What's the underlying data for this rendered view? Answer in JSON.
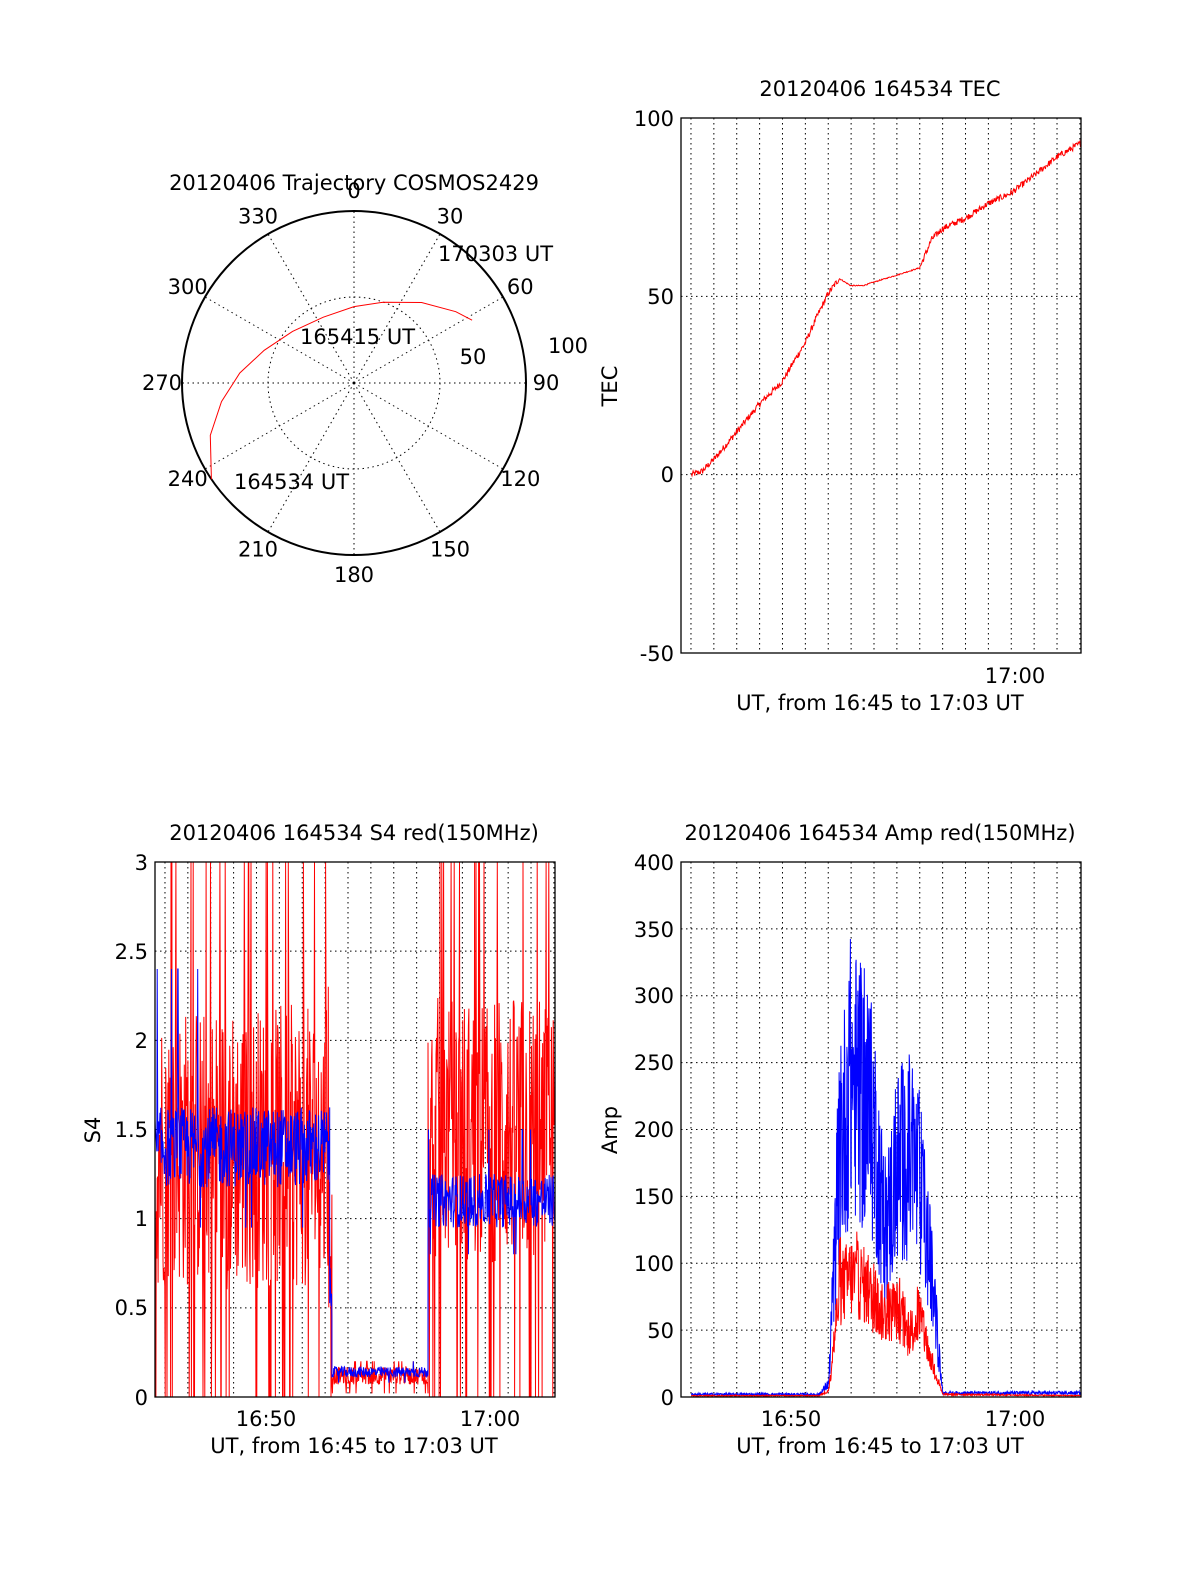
{
  "chart_data": [
    {
      "id": "trajectory",
      "type": "polar",
      "title": "20120406 Trajectory COSMOS2429",
      "azimuth_labels": [
        "0",
        "30",
        "60",
        "90",
        "120",
        "150",
        "180",
        "210",
        "240",
        "270",
        "300",
        "330"
      ],
      "radial_ticks": [
        {
          "label": "100",
          "value": 100
        },
        {
          "label": "50",
          "value": 50
        }
      ],
      "track": {
        "points_az_el": [
          [
            236,
            0
          ],
          [
            250,
            10
          ],
          [
            262,
            20
          ],
          [
            275,
            30
          ],
          [
            290,
            40
          ],
          [
            310,
            48
          ],
          [
            335,
            52
          ],
          [
            0,
            50
          ],
          [
            20,
            45
          ],
          [
            40,
            35
          ],
          [
            55,
            25
          ],
          [
            62,
            20
          ]
        ],
        "color": "#ff0000"
      },
      "annotations": [
        {
          "text": "170303 UT"
        },
        {
          "text": "165415 UT"
        },
        {
          "text": "164534 UT"
        }
      ]
    },
    {
      "id": "tec",
      "type": "line",
      "title": "20120406 164534 TEC",
      "xlabel": "UT, from 16:45 to 17:03 UT",
      "ylabel": "TEC",
      "xlim": [
        16.7594,
        17.0508
      ],
      "ylim": [
        -50,
        100
      ],
      "yticks": [
        {
          "label": "100",
          "value": 100
        },
        {
          "label": "50",
          "value": 50
        },
        {
          "label": "0",
          "value": 0
        },
        {
          "label": "-50",
          "value": -50
        }
      ],
      "xticks": [
        {
          "label": "17:00",
          "value": 17.0
        }
      ],
      "x_grid_step_minutes": 1,
      "series": [
        {
          "color": "#ff0000",
          "points": [
            [
              16.767,
              0
            ],
            [
              16.775,
              1
            ],
            [
              16.785,
              5
            ],
            [
              16.8,
              12
            ],
            [
              16.817,
              20
            ],
            [
              16.833,
              26
            ],
            [
              16.842,
              32
            ],
            [
              16.85,
              37
            ],
            [
              16.858,
              44
            ],
            [
              16.867,
              51
            ],
            [
              16.8747,
              55
            ],
            [
              16.883,
              53
            ],
            [
              16.892,
              53
            ],
            [
              16.9,
              54
            ],
            [
              16.917,
              56
            ],
            [
              16.9333,
              58
            ],
            [
              16.942,
              66
            ],
            [
              16.95,
              69
            ],
            [
              16.967,
              72
            ],
            [
              16.983,
              76
            ],
            [
              17.0,
              79
            ],
            [
              17.017,
              84
            ],
            [
              17.033,
              89
            ],
            [
              17.0508,
              93
            ]
          ]
        }
      ]
    },
    {
      "id": "s4",
      "type": "line",
      "title": "20120406 164534 S4 red(150MHz)",
      "xlabel": "UT, from 16:45 to 17:03 UT",
      "ylabel": "S4",
      "xlim": [
        16.7594,
        17.0508
      ],
      "ylim": [
        0,
        3
      ],
      "yticks": [
        {
          "label": "3",
          "value": 3
        },
        {
          "label": "2.5",
          "value": 2.5
        },
        {
          "label": "2",
          "value": 2
        },
        {
          "label": "1.5",
          "value": 1.5
        },
        {
          "label": "1",
          "value": 1
        },
        {
          "label": "0.5",
          "value": 0.5
        },
        {
          "label": "0",
          "value": 0
        }
      ],
      "xticks": [
        {
          "label": "16:50",
          "value": 16.8333
        },
        {
          "label": "17:00",
          "value": 17.0
        }
      ],
      "x_grid_step_minutes": 1,
      "series": [
        {
          "color": "#ff0000",
          "segments": [
            {
              "x": [
                16.7594,
                16.885
              ],
              "center": 1.4,
              "spread": 1.6,
              "spikes_to": 3.0
            },
            {
              "x": [
                16.885,
                16.8883
              ],
              "center": 0.9,
              "spread": 0.9,
              "spikes_to": 2.3
            },
            {
              "x": [
                16.8883,
                16.9583
              ],
              "center": 0.12,
              "spread": 0.1,
              "spikes_to": 0.2
            },
            {
              "x": [
                16.9583,
                17.0508
              ],
              "center": 1.5,
              "spread": 1.5,
              "spikes_to": 3.0
            }
          ]
        },
        {
          "color": "#0000ff",
          "segments": [
            {
              "x": [
                16.7594,
                16.8867
              ],
              "center": 1.4,
              "spread": 0.45,
              "spikes_to": 2.4
            },
            {
              "x": [
                16.8867,
                16.8883
              ],
              "center": 0.6,
              "spread": 0.4,
              "spikes_to": 1.0
            },
            {
              "x": [
                16.8883,
                16.9583
              ],
              "center": 0.14,
              "spread": 0.06,
              "spikes_to": 0.2
            },
            {
              "x": [
                16.9583,
                17.0508
              ],
              "center": 1.1,
              "spread": 0.3,
              "spikes_to": 1.5
            }
          ]
        }
      ]
    },
    {
      "id": "amp",
      "type": "line",
      "title": "20120406 164534 Amp red(150MHz)",
      "xlabel": "UT, from 16:45 to 17:03 UT",
      "ylabel": "Amp",
      "xlim": [
        16.7594,
        17.0508
      ],
      "ylim": [
        0,
        400
      ],
      "yticks": [
        {
          "label": "400",
          "value": 400
        },
        {
          "label": "350",
          "value": 350
        },
        {
          "label": "300",
          "value": 300
        },
        {
          "label": "250",
          "value": 250
        },
        {
          "label": "200",
          "value": 200
        },
        {
          "label": "150",
          "value": 150
        },
        {
          "label": "100",
          "value": 100
        },
        {
          "label": "50",
          "value": 50
        },
        {
          "label": "0",
          "value": 0
        }
      ],
      "xticks": [
        {
          "label": "16:50",
          "value": 16.8333
        },
        {
          "label": "17:00",
          "value": 17.0
        }
      ],
      "x_grid_step_minutes": 1,
      "series": [
        {
          "color": "#0000ff",
          "envelope": [
            [
              16.767,
              2
            ],
            [
              16.86,
              2
            ],
            [
              16.867,
              10
            ],
            [
              16.875,
              180
            ],
            [
              16.883,
              240
            ],
            [
              16.892,
              220
            ],
            [
              16.9,
              200
            ],
            [
              16.908,
              120
            ],
            [
              16.917,
              170
            ],
            [
              16.925,
              180
            ],
            [
              16.933,
              160
            ],
            [
              16.942,
              90
            ],
            [
              16.95,
              3
            ],
            [
              17.0508,
              3
            ]
          ]
        },
        {
          "color": "#ff0000",
          "envelope": [
            [
              16.767,
              1
            ],
            [
              16.86,
              1
            ],
            [
              16.867,
              5
            ],
            [
              16.875,
              80
            ],
            [
              16.883,
              90
            ],
            [
              16.892,
              85
            ],
            [
              16.9,
              70
            ],
            [
              16.908,
              60
            ],
            [
              16.917,
              65
            ],
            [
              16.925,
              45
            ],
            [
              16.933,
              60
            ],
            [
              16.942,
              25
            ],
            [
              16.95,
              2
            ],
            [
              17.0508,
              1
            ]
          ]
        }
      ]
    }
  ]
}
